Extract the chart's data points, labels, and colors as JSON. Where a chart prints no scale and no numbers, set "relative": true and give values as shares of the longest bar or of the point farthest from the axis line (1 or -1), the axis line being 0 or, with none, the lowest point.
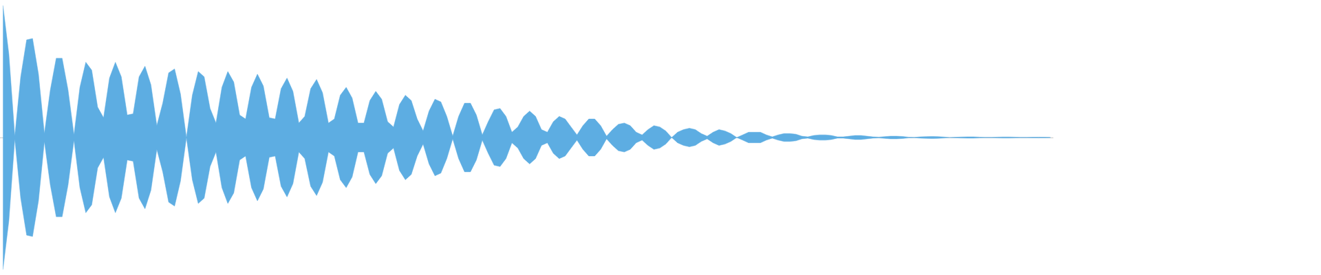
{
  "chart_data": {
    "type": "area",
    "relative": true,
    "categories": [
      null,
      null,
      null,
      null,
      null,
      null,
      null,
      null,
      null,
      null,
      null,
      null,
      null,
      null,
      null,
      null,
      null,
      null,
      null,
      null,
      null,
      null,
      null,
      null,
      null,
      null,
      null,
      null,
      null,
      null,
      null,
      null,
      null,
      null,
      null,
      null,
      null,
      null,
      null,
      null,
      null,
      null,
      null,
      null,
      null,
      null,
      null,
      null,
      null,
      null,
      null,
      null,
      null,
      null,
      null,
      null,
      null,
      null,
      null,
      null,
      null,
      null,
      null,
      null,
      null,
      null,
      null,
      null,
      null,
      null,
      null,
      null,
      null,
      null,
      null,
      null,
      null,
      null,
      null,
      null,
      null,
      null,
      null,
      null,
      null,
      null,
      null,
      null,
      null,
      null,
      null,
      null,
      null,
      null,
      null,
      null,
      null,
      null,
      null,
      null,
      null,
      null,
      null,
      null,
      null,
      null,
      null,
      null,
      null,
      null,
      null,
      null,
      null,
      null,
      null,
      null,
      null,
      null,
      null,
      null,
      null,
      null,
      null,
      null,
      null,
      null,
      null,
      null,
      null,
      null,
      null,
      null,
      null,
      null,
      null,
      null,
      null,
      null,
      null,
      null,
      null,
      null,
      null,
      null,
      null,
      null,
      null,
      null,
      null,
      null,
      null,
      null,
      null,
      null,
      null,
      null,
      null,
      null,
      null,
      null,
      null,
      null,
      null,
      null,
      null,
      null,
      null,
      null,
      null,
      null,
      null,
      null,
      null,
      null,
      null,
      null,
      null,
      null
    ],
    "series": [
      {
        "color": "#5dade2",
        "values": [
          1,
          0.63,
          0.01,
          0.46,
          0.74,
          0.75,
          0.48,
          0.03,
          0.36,
          0.6,
          0.6,
          0.36,
          0.02,
          0.38,
          0.57,
          0.51,
          0.23,
          0.15,
          0.45,
          0.57,
          0.46,
          0.17,
          0.18,
          0.46,
          0.54,
          0.4,
          0.09,
          0.26,
          0.49,
          0.52,
          0.33,
          0,
          0.32,
          0.5,
          0.46,
          0.22,
          0.11,
          0.38,
          0.5,
          0.42,
          0.17,
          0.14,
          0.38,
          0.48,
          0.39,
          0.15,
          0.14,
          0.37,
          0.45,
          0.35,
          0.11,
          0.16,
          0.37,
          0.44,
          0.34,
          0.11,
          0.14,
          0.32,
          0.38,
          0.3,
          0.11,
          0.11,
          0.28,
          0.35,
          0.29,
          0.12,
          0.08,
          0.25,
          0.32,
          0.28,
          0.14,
          0.05,
          0.2,
          0.29,
          0.27,
          0.16,
          0.01,
          0.16,
          0.26,
          0.26,
          0.17,
          0.02,
          0.12,
          0.21,
          0.22,
          0.16,
          0.04,
          0.08,
          0.16,
          0.2,
          0.16,
          0.06,
          0.04,
          0.12,
          0.16,
          0.14,
          0.08,
          0.02,
          0.09,
          0.14,
          0.14,
          0.09,
          0.01,
          0.06,
          0.1,
          0.11,
          0.09,
          0.04,
          0.02,
          0.06,
          0.09,
          0.08,
          0.05,
          0,
          0.04,
          0.06,
          0.07,
          0.06,
          0.03,
          0.01,
          0.04,
          0.06,
          0.05,
          0.03,
          0,
          0.02,
          0.04,
          0.04,
          0.04,
          0.02,
          0.005,
          0.02,
          0.03,
          0.03,
          0.025,
          0.01,
          0.005,
          0.015,
          0.02,
          0.02,
          0.015,
          0.005,
          0.005,
          0.01,
          0.015,
          0.015,
          0.01,
          0.005,
          0.003,
          0.007,
          0.01,
          0.01,
          0.008,
          0.003,
          0.001,
          0.005,
          0.007,
          0.008,
          0.007,
          0.004,
          0,
          0.002,
          0.004,
          0.005,
          0.005,
          0.003,
          0.001,
          0.001,
          0.003,
          0.004,
          0.004,
          0.003,
          0.001,
          0.001,
          0.002,
          0.003,
          0.002,
          0.001
        ]
      },
      {
        "color": "#5dade2",
        "values": [
          -1,
          -0.63,
          -0.01,
          -0.46,
          -0.74,
          -0.75,
          -0.48,
          -0.03,
          -0.36,
          -0.6,
          -0.6,
          -0.36,
          -0.02,
          -0.38,
          -0.57,
          -0.51,
          -0.23,
          -0.15,
          -0.45,
          -0.57,
          -0.46,
          -0.17,
          -0.18,
          -0.46,
          -0.54,
          -0.4,
          -0.09,
          -0.26,
          -0.49,
          -0.52,
          -0.33,
          0,
          -0.32,
          -0.5,
          -0.46,
          -0.22,
          -0.11,
          -0.38,
          -0.5,
          -0.42,
          -0.17,
          -0.14,
          -0.38,
          -0.48,
          -0.39,
          -0.15,
          -0.14,
          -0.37,
          -0.45,
          -0.35,
          -0.11,
          -0.16,
          -0.37,
          -0.44,
          -0.34,
          -0.11,
          -0.14,
          -0.32,
          -0.38,
          -0.3,
          -0.11,
          -0.11,
          -0.28,
          -0.35,
          -0.29,
          -0.12,
          -0.08,
          -0.25,
          -0.32,
          -0.28,
          -0.14,
          -0.05,
          -0.2,
          -0.29,
          -0.27,
          -0.16,
          -0.01,
          -0.16,
          -0.26,
          -0.26,
          -0.17,
          -0.02,
          -0.12,
          -0.21,
          -0.22,
          -0.16,
          -0.04,
          -0.08,
          -0.16,
          -0.2,
          -0.16,
          -0.06,
          -0.04,
          -0.12,
          -0.16,
          -0.14,
          -0.08,
          -0.02,
          -0.09,
          -0.14,
          -0.14,
          -0.09,
          -0.01,
          -0.06,
          -0.1,
          -0.11,
          -0.09,
          -0.04,
          -0.02,
          -0.06,
          -0.09,
          -0.08,
          -0.05,
          0,
          -0.04,
          -0.06,
          -0.07,
          -0.06,
          -0.03,
          -0.01,
          -0.04,
          -0.06,
          -0.05,
          -0.03,
          0,
          -0.02,
          -0.04,
          -0.04,
          -0.04,
          -0.02,
          -0.005,
          -0.02,
          -0.03,
          -0.03,
          -0.025,
          -0.01,
          -0.005,
          -0.015,
          -0.02,
          -0.02,
          -0.015,
          -0.005,
          -0.005,
          -0.01,
          -0.015,
          -0.015,
          -0.01,
          -0.005,
          -0.003,
          -0.007,
          -0.01,
          -0.01,
          -0.008,
          -0.003,
          -0.001,
          -0.005,
          -0.007,
          -0.008,
          -0.007,
          -0.004,
          0,
          -0.002,
          -0.004,
          -0.005,
          -0.005,
          -0.003,
          -0.001,
          -0.001,
          -0.003,
          -0.004,
          -0.004,
          -0.003,
          -0.001,
          -0.001,
          -0.002,
          -0.003,
          -0.002,
          -0.001
        ]
      }
    ]
  }
}
